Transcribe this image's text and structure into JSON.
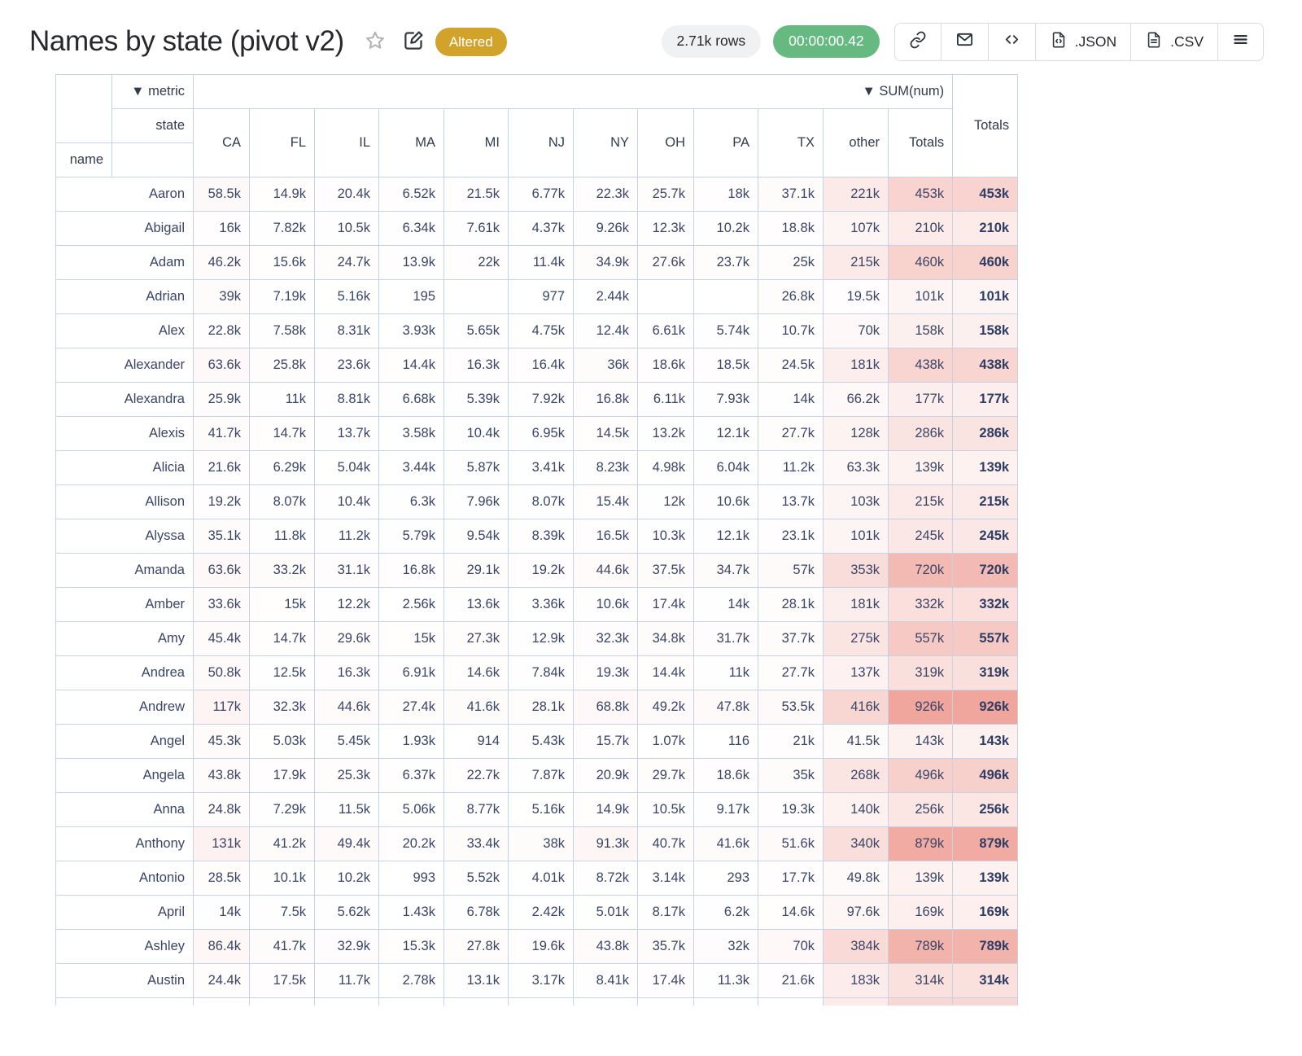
{
  "header": {
    "title": "Names by state (pivot v2)",
    "status_badge": "Altered",
    "rows_pill": "2.71k rows",
    "time_pill": "00:00:00.42",
    "toolbar": {
      "json_label": ".JSON",
      "csv_label": ".CSV"
    }
  },
  "pivot": {
    "metric_label": "▼ metric",
    "sum_label": "▼ SUM(num)",
    "state_label": "state",
    "name_label": "name",
    "totals_inner_label": "Totals",
    "totals_outer_label": "Totals",
    "columns": [
      "CA",
      "FL",
      "IL",
      "MA",
      "MI",
      "NJ",
      "NY",
      "OH",
      "PA",
      "TX",
      "other",
      "Totals"
    ],
    "heat_max_value": 926000,
    "rows": [
      {
        "name": "Aaron",
        "values": [
          "58.5k",
          "14.9k",
          "20.4k",
          "6.52k",
          "21.5k",
          "6.77k",
          "22.3k",
          "25.7k",
          "18k",
          "37.1k",
          "221k",
          "453k"
        ],
        "total": "453k"
      },
      {
        "name": "Abigail",
        "values": [
          "16k",
          "7.82k",
          "10.5k",
          "6.34k",
          "7.61k",
          "4.37k",
          "9.26k",
          "12.3k",
          "10.2k",
          "18.8k",
          "107k",
          "210k"
        ],
        "total": "210k"
      },
      {
        "name": "Adam",
        "values": [
          "46.2k",
          "15.6k",
          "24.7k",
          "13.9k",
          "22k",
          "11.4k",
          "34.9k",
          "27.6k",
          "23.7k",
          "25k",
          "215k",
          "460k"
        ],
        "total": "460k"
      },
      {
        "name": "Adrian",
        "values": [
          "39k",
          "7.19k",
          "5.16k",
          "195",
          "",
          "977",
          "2.44k",
          "",
          "",
          "26.8k",
          "19.5k",
          "101k"
        ],
        "total": "101k"
      },
      {
        "name": "Alex",
        "values": [
          "22.8k",
          "7.58k",
          "8.31k",
          "3.93k",
          "5.65k",
          "4.75k",
          "12.4k",
          "6.61k",
          "5.74k",
          "10.7k",
          "70k",
          "158k"
        ],
        "total": "158k"
      },
      {
        "name": "Alexander",
        "values": [
          "63.6k",
          "25.8k",
          "23.6k",
          "14.4k",
          "16.3k",
          "16.4k",
          "36k",
          "18.6k",
          "18.5k",
          "24.5k",
          "181k",
          "438k"
        ],
        "total": "438k"
      },
      {
        "name": "Alexandra",
        "values": [
          "25.9k",
          "11k",
          "8.81k",
          "6.68k",
          "5.39k",
          "7.92k",
          "16.8k",
          "6.11k",
          "7.93k",
          "14k",
          "66.2k",
          "177k"
        ],
        "total": "177k"
      },
      {
        "name": "Alexis",
        "values": [
          "41.7k",
          "14.7k",
          "13.7k",
          "3.58k",
          "10.4k",
          "6.95k",
          "14.5k",
          "13.2k",
          "12.1k",
          "27.7k",
          "128k",
          "286k"
        ],
        "total": "286k"
      },
      {
        "name": "Alicia",
        "values": [
          "21.6k",
          "6.29k",
          "5.04k",
          "3.44k",
          "5.87k",
          "3.41k",
          "8.23k",
          "4.98k",
          "6.04k",
          "11.2k",
          "63.3k",
          "139k"
        ],
        "total": "139k"
      },
      {
        "name": "Allison",
        "values": [
          "19.2k",
          "8.07k",
          "10.4k",
          "6.3k",
          "7.96k",
          "8.07k",
          "15.4k",
          "12k",
          "10.6k",
          "13.7k",
          "103k",
          "215k"
        ],
        "total": "215k"
      },
      {
        "name": "Alyssa",
        "values": [
          "35.1k",
          "11.8k",
          "11.2k",
          "5.79k",
          "9.54k",
          "8.39k",
          "16.5k",
          "10.3k",
          "12.1k",
          "23.1k",
          "101k",
          "245k"
        ],
        "total": "245k"
      },
      {
        "name": "Amanda",
        "values": [
          "63.6k",
          "33.2k",
          "31.1k",
          "16.8k",
          "29.1k",
          "19.2k",
          "44.6k",
          "37.5k",
          "34.7k",
          "57k",
          "353k",
          "720k"
        ],
        "total": "720k"
      },
      {
        "name": "Amber",
        "values": [
          "33.6k",
          "15k",
          "12.2k",
          "2.56k",
          "13.6k",
          "3.36k",
          "10.6k",
          "17.4k",
          "14k",
          "28.1k",
          "181k",
          "332k"
        ],
        "total": "332k"
      },
      {
        "name": "Amy",
        "values": [
          "45.4k",
          "14.7k",
          "29.6k",
          "15k",
          "27.3k",
          "12.9k",
          "32.3k",
          "34.8k",
          "31.7k",
          "37.7k",
          "275k",
          "557k"
        ],
        "total": "557k"
      },
      {
        "name": "Andrea",
        "values": [
          "50.8k",
          "12.5k",
          "16.3k",
          "6.91k",
          "14.6k",
          "7.84k",
          "19.3k",
          "14.4k",
          "11k",
          "27.7k",
          "137k",
          "319k"
        ],
        "total": "319k"
      },
      {
        "name": "Andrew",
        "values": [
          "117k",
          "32.3k",
          "44.6k",
          "27.4k",
          "41.6k",
          "28.1k",
          "68.8k",
          "49.2k",
          "47.8k",
          "53.5k",
          "416k",
          "926k"
        ],
        "total": "926k"
      },
      {
        "name": "Angel",
        "values": [
          "45.3k",
          "5.03k",
          "5.45k",
          "1.93k",
          "914",
          "5.43k",
          "15.7k",
          "1.07k",
          "116",
          "21k",
          "41.5k",
          "143k"
        ],
        "total": "143k"
      },
      {
        "name": "Angela",
        "values": [
          "43.8k",
          "17.9k",
          "25.3k",
          "6.37k",
          "22.7k",
          "7.87k",
          "20.9k",
          "29.7k",
          "18.6k",
          "35k",
          "268k",
          "496k"
        ],
        "total": "496k"
      },
      {
        "name": "Anna",
        "values": [
          "24.8k",
          "7.29k",
          "11.5k",
          "5.06k",
          "8.77k",
          "5.16k",
          "14.9k",
          "10.5k",
          "9.17k",
          "19.3k",
          "140k",
          "256k"
        ],
        "total": "256k"
      },
      {
        "name": "Anthony",
        "values": [
          "131k",
          "41.2k",
          "49.4k",
          "20.2k",
          "33.4k",
          "38k",
          "91.3k",
          "40.7k",
          "41.6k",
          "51.6k",
          "340k",
          "879k"
        ],
        "total": "879k"
      },
      {
        "name": "Antonio",
        "values": [
          "28.5k",
          "10.1k",
          "10.2k",
          "993",
          "5.52k",
          "4.01k",
          "8.72k",
          "3.14k",
          "293",
          "17.7k",
          "49.8k",
          "139k"
        ],
        "total": "139k"
      },
      {
        "name": "April",
        "values": [
          "14k",
          "7.5k",
          "5.62k",
          "1.43k",
          "6.78k",
          "2.42k",
          "5.01k",
          "8.17k",
          "6.2k",
          "14.6k",
          "97.6k",
          "169k"
        ],
        "total": "169k"
      },
      {
        "name": "Ashley",
        "values": [
          "86.4k",
          "41.7k",
          "32.9k",
          "15.3k",
          "27.8k",
          "19.6k",
          "43.8k",
          "35.7k",
          "32k",
          "70k",
          "384k",
          "789k"
        ],
        "total": "789k"
      },
      {
        "name": "Austin",
        "values": [
          "24.4k",
          "17.5k",
          "11.7k",
          "2.78k",
          "13.1k",
          "3.17k",
          "8.41k",
          "17.4k",
          "11.3k",
          "21.6k",
          "183k",
          "314k"
        ],
        "total": "314k"
      }
    ]
  },
  "colors": {
    "accent_gold": "#d1a32b",
    "accent_green": "#66ba81",
    "heat_max": "#f0a69d",
    "table_text": "#3a4566",
    "table_border": "#c7d2e4"
  }
}
